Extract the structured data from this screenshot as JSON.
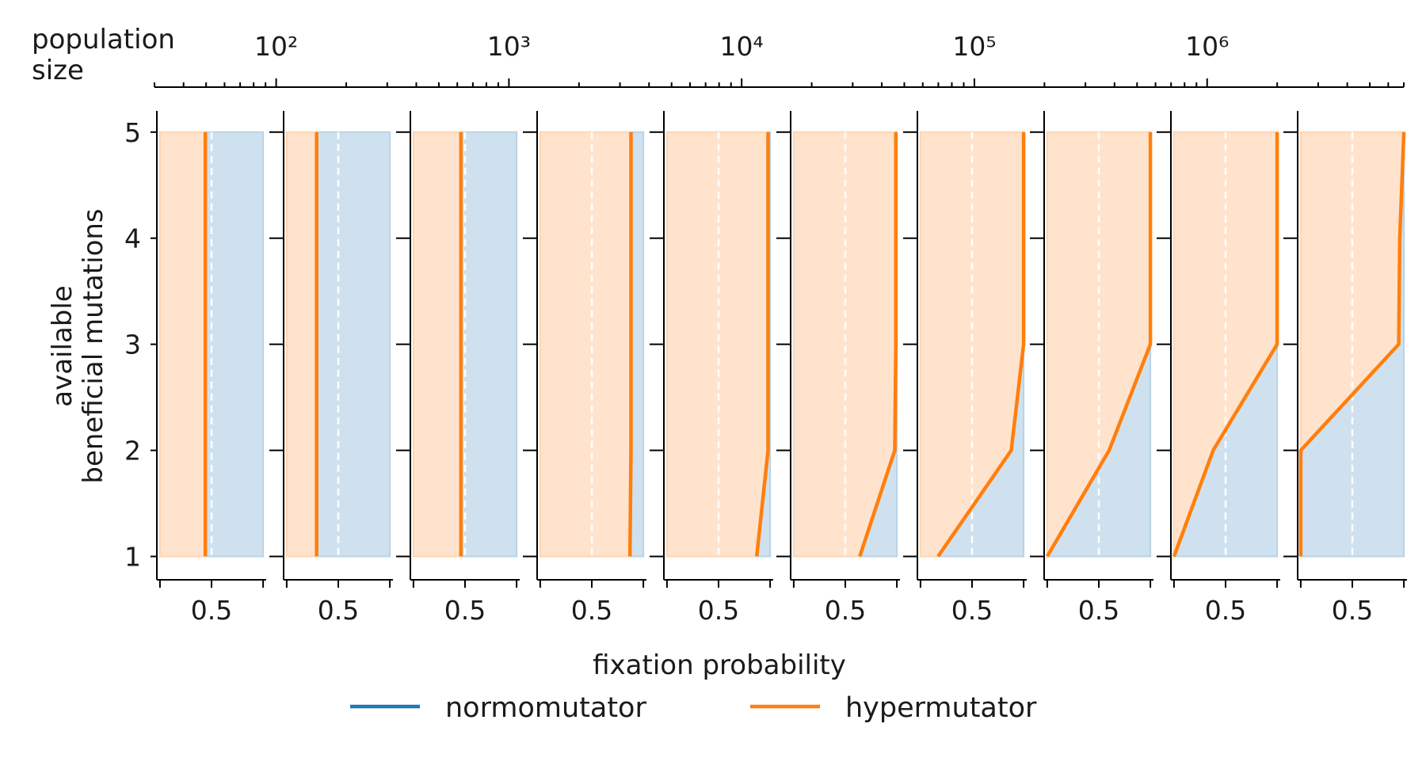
{
  "chart_data": {
    "type": "area",
    "population_axis": {
      "label": "population\nsize",
      "scale": "log",
      "major_ticks": [
        {
          "value": 100,
          "label": "10²"
        },
        {
          "value": 1000,
          "label": "10³"
        },
        {
          "value": 10000,
          "label": "10⁴"
        },
        {
          "value": 100000,
          "label": "10⁵"
        },
        {
          "value": 1000000,
          "label": "10⁶"
        }
      ],
      "range": [
        30,
        7000000
      ]
    },
    "ylabel": "available\nbeneficial mutations",
    "yticks": [
      1,
      2,
      3,
      4,
      5
    ],
    "ylim": [
      0.78,
      5.2
    ],
    "xlabel": "fixation probability",
    "xtick_labels": [
      "0.5"
    ],
    "xlim": [
      -0.03,
      1.03
    ],
    "grid": "dashed white line at x = 0.5",
    "legend": {
      "placement": "bottom-center",
      "entries": [
        {
          "name": "normomutator",
          "color": "#1f77b4"
        },
        {
          "name": "hypermutator",
          "color": "#ff7f0e"
        }
      ]
    },
    "colors": {
      "normomutator": "#1f77b4",
      "hypermutator": "#ff7f0e"
    },
    "fill_colors": {
      "normomutator": "#cfe1ee",
      "hypermutator": "#ffe3cd"
    },
    "y": [
      1,
      2,
      3,
      4,
      5
    ],
    "panels": [
      {
        "hypermutator": [
          0.44,
          0.44,
          0.44,
          0.44,
          0.44
        ]
      },
      {
        "hypermutator": [
          0.29,
          0.29,
          0.29,
          0.29,
          0.29
        ]
      },
      {
        "hypermutator": [
          0.46,
          0.46,
          0.46,
          0.46,
          0.46
        ]
      },
      {
        "hypermutator": [
          0.87,
          0.88,
          0.88,
          0.88,
          0.88
        ]
      },
      {
        "hypermutator": [
          0.87,
          0.98,
          0.98,
          0.98,
          0.98
        ]
      },
      {
        "hypermutator": [
          0.64,
          0.98,
          0.99,
          0.99,
          0.99
        ]
      },
      {
        "hypermutator": [
          0.17,
          0.88,
          1.0,
          1.0,
          1.0
        ]
      },
      {
        "hypermutator": [
          0.0,
          0.6,
          1.0,
          1.0,
          1.0
        ]
      },
      {
        "hypermutator": [
          0.0,
          0.38,
          1.0,
          1.0,
          1.0
        ]
      },
      {
        "hypermutator": [
          0.0,
          0.0,
          0.95,
          0.96,
          1.0
        ]
      }
    ]
  }
}
